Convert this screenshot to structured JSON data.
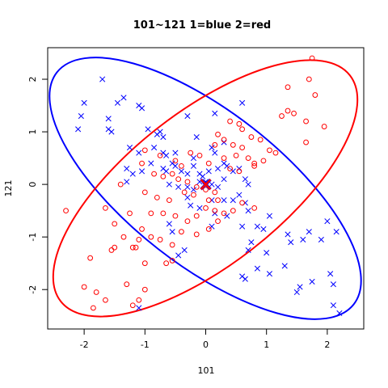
{
  "chart_data": {
    "type": "scatter",
    "title": "101~121 1=blue 2=red",
    "xlabel": "101",
    "ylabel": "121",
    "xlim": [
      -2.6,
      2.6
    ],
    "ylim": [
      -2.75,
      2.6
    ],
    "xticks": [
      "-2",
      "-1",
      "0",
      "1",
      "2"
    ],
    "xtick_values": [
      -2,
      -1,
      0,
      1,
      2
    ],
    "yticks": [
      "-2",
      "-1",
      "0",
      "1",
      "2"
    ],
    "ytick_values": [
      -2,
      -1,
      0,
      1,
      2
    ],
    "grid": false,
    "colors": {
      "group1": "#0000ff",
      "group2": "#ff0000"
    },
    "series": [
      {
        "marker": "x",
        "color": "#0000ff",
        "points": [
          [
            -1.7,
            2.0
          ],
          [
            -2.0,
            1.55
          ],
          [
            -1.45,
            1.55
          ],
          [
            -1.35,
            1.65
          ],
          [
            -1.1,
            1.5
          ],
          [
            -1.05,
            1.45
          ],
          [
            -2.05,
            1.3
          ],
          [
            -2.1,
            1.05
          ],
          [
            -1.6,
            1.25
          ],
          [
            -1.6,
            1.05
          ],
          [
            -1.55,
            1.0
          ],
          [
            -0.95,
            1.05
          ],
          [
            -0.8,
            0.95
          ],
          [
            -0.75,
            1.0
          ],
          [
            -0.7,
            0.9
          ],
          [
            -1.25,
            0.7
          ],
          [
            -1.1,
            0.6
          ],
          [
            -0.85,
            0.7
          ],
          [
            -0.7,
            0.6
          ],
          [
            -0.65,
            0.55
          ],
          [
            -0.5,
            0.6
          ],
          [
            -0.3,
            1.3
          ],
          [
            0.15,
            1.35
          ],
          [
            0.6,
            1.55
          ],
          [
            -1.3,
            0.3
          ],
          [
            -1.2,
            0.2
          ],
          [
            -1.3,
            0.05
          ],
          [
            -1.05,
            0.25
          ],
          [
            -0.9,
            0.4
          ],
          [
            -0.7,
            0.3
          ],
          [
            -0.65,
            0.25
          ],
          [
            -0.55,
            0.4
          ],
          [
            -0.5,
            0.35
          ],
          [
            -0.4,
            0.25
          ],
          [
            -0.3,
            0.2
          ],
          [
            -0.2,
            0.35
          ],
          [
            -0.1,
            0.2
          ],
          [
            -0.05,
            0.15
          ],
          [
            0.05,
            0.25
          ],
          [
            0.2,
            0.3
          ],
          [
            0.3,
            0.4
          ],
          [
            0.35,
            0.35
          ],
          [
            -0.2,
            0.5
          ],
          [
            0.1,
            0.7
          ],
          [
            0.15,
            0.6
          ],
          [
            -0.15,
            0.9
          ],
          [
            0.3,
            0.8
          ],
          [
            -0.6,
            0.0
          ],
          [
            -0.45,
            -0.05
          ],
          [
            -0.3,
            -0.05
          ],
          [
            -0.2,
            -0.1
          ],
          [
            -0.1,
            0.05
          ],
          [
            0.0,
            0.05
          ],
          [
            0.1,
            0.0
          ],
          [
            0.2,
            -0.05
          ],
          [
            0.3,
            0.1
          ],
          [
            0.45,
            0.25
          ],
          [
            0.55,
            0.3
          ],
          [
            0.65,
            0.1
          ],
          [
            0.7,
            0.0
          ],
          [
            -0.3,
            -0.25
          ],
          [
            0.1,
            -0.3
          ],
          [
            0.3,
            -0.3
          ],
          [
            0.45,
            -0.3
          ],
          [
            0.55,
            -0.2
          ],
          [
            0.65,
            -0.35
          ],
          [
            -0.1,
            -0.45
          ],
          [
            0.15,
            -0.55
          ],
          [
            0.35,
            -0.6
          ],
          [
            0.7,
            -0.5
          ],
          [
            -0.6,
            -0.75
          ],
          [
            -0.55,
            -0.9
          ],
          [
            -0.25,
            -0.4
          ],
          [
            -0.45,
            -1.35
          ],
          [
            -0.35,
            -1.25
          ],
          [
            0.1,
            -0.8
          ],
          [
            0.6,
            -0.8
          ],
          [
            0.85,
            -0.8
          ],
          [
            0.95,
            -0.85
          ],
          [
            1.05,
            -0.6
          ],
          [
            0.75,
            -1.1
          ],
          [
            0.7,
            -1.25
          ],
          [
            1.0,
            -1.3
          ],
          [
            0.85,
            -1.6
          ],
          [
            1.35,
            -0.95
          ],
          [
            1.4,
            -1.1
          ],
          [
            1.6,
            -1.05
          ],
          [
            1.7,
            -0.9
          ],
          [
            1.9,
            -1.05
          ],
          [
            2.0,
            -0.7
          ],
          [
            2.15,
            -0.9
          ],
          [
            1.3,
            -1.55
          ],
          [
            1.05,
            -1.7
          ],
          [
            0.6,
            -1.75
          ],
          [
            0.65,
            -1.8
          ],
          [
            1.5,
            -2.05
          ],
          [
            1.55,
            -1.95
          ],
          [
            1.75,
            -1.85
          ],
          [
            2.05,
            -1.7
          ],
          [
            2.1,
            -1.9
          ],
          [
            2.1,
            -2.3
          ],
          [
            2.2,
            -2.45
          ],
          [
            -1.1,
            -2.35
          ]
        ]
      },
      {
        "marker": "o",
        "color": "#ff0000",
        "points": [
          [
            1.75,
            2.4
          ],
          [
            1.7,
            2.0
          ],
          [
            1.8,
            1.7
          ],
          [
            1.35,
            1.85
          ],
          [
            1.35,
            1.4
          ],
          [
            1.45,
            1.35
          ],
          [
            1.25,
            1.3
          ],
          [
            1.65,
            1.2
          ],
          [
            1.95,
            1.1
          ],
          [
            1.65,
            0.8
          ],
          [
            0.4,
            1.2
          ],
          [
            0.55,
            1.15
          ],
          [
            0.6,
            1.05
          ],
          [
            0.75,
            0.9
          ],
          [
            0.9,
            0.85
          ],
          [
            1.05,
            0.65
          ],
          [
            1.15,
            0.6
          ],
          [
            0.95,
            0.45
          ],
          [
            0.8,
            0.4
          ],
          [
            0.2,
            0.95
          ],
          [
            0.3,
            0.85
          ],
          [
            0.15,
            0.75
          ],
          [
            0.45,
            0.75
          ],
          [
            0.6,
            0.7
          ],
          [
            0.3,
            0.5
          ],
          [
            0.5,
            0.55
          ],
          [
            0.7,
            0.5
          ],
          [
            0.8,
            0.35
          ],
          [
            -0.25,
            0.6
          ],
          [
            -0.1,
            0.55
          ],
          [
            0.05,
            0.4
          ],
          [
            0.4,
            0.3
          ],
          [
            0.55,
            0.25
          ],
          [
            -1.0,
            0.65
          ],
          [
            -0.75,
            0.55
          ],
          [
            -0.5,
            0.45
          ],
          [
            -0.4,
            0.35
          ],
          [
            -1.05,
            0.4
          ],
          [
            -0.85,
            0.2
          ],
          [
            -0.7,
            0.15
          ],
          [
            -0.55,
            0.2
          ],
          [
            -0.45,
            0.1
          ],
          [
            -0.3,
            0.05
          ],
          [
            -0.15,
            -0.05
          ],
          [
            0.0,
            -0.1
          ],
          [
            0.15,
            -0.15
          ],
          [
            -0.2,
            -0.2
          ],
          [
            -0.35,
            -0.15
          ],
          [
            0.05,
            -0.3
          ],
          [
            0.2,
            -0.3
          ],
          [
            -1.4,
            0.0
          ],
          [
            -1.0,
            -0.15
          ],
          [
            -0.8,
            -0.25
          ],
          [
            -0.6,
            -0.3
          ],
          [
            -1.25,
            -0.55
          ],
          [
            -0.9,
            -0.55
          ],
          [
            -0.7,
            -0.55
          ],
          [
            -0.5,
            -0.6
          ],
          [
            -0.3,
            -0.7
          ],
          [
            -0.15,
            -0.6
          ],
          [
            0.0,
            -0.45
          ],
          [
            0.15,
            -0.5
          ],
          [
            0.3,
            -0.55
          ],
          [
            0.45,
            -0.5
          ],
          [
            0.6,
            -0.35
          ],
          [
            0.8,
            -0.45
          ],
          [
            -0.15,
            -0.95
          ],
          [
            0.05,
            -0.85
          ],
          [
            -0.4,
            -0.9
          ],
          [
            0.2,
            -0.7
          ],
          [
            -1.65,
            -0.45
          ],
          [
            -1.5,
            -0.75
          ],
          [
            -1.35,
            -1.0
          ],
          [
            -1.1,
            -1.05
          ],
          [
            -1.05,
            -0.85
          ],
          [
            -0.9,
            -1.0
          ],
          [
            -0.75,
            -1.05
          ],
          [
            -0.55,
            -1.15
          ],
          [
            -1.2,
            -1.2
          ],
          [
            -1.15,
            -1.2
          ],
          [
            -1.5,
            -1.2
          ],
          [
            -1.55,
            -1.25
          ],
          [
            -0.65,
            -1.5
          ],
          [
            -0.55,
            -1.45
          ],
          [
            -2.3,
            -0.5
          ],
          [
            -1.9,
            -1.4
          ],
          [
            -2.0,
            -1.95
          ],
          [
            -1.8,
            -2.05
          ],
          [
            -1.3,
            -1.9
          ],
          [
            -1.0,
            -2.0
          ],
          [
            -1.1,
            -2.2
          ],
          [
            -1.2,
            -2.3
          ],
          [
            -1.65,
            -2.2
          ],
          [
            -1.85,
            -2.35
          ],
          [
            -1.0,
            -1.5
          ]
        ]
      }
    ],
    "centers": [
      {
        "color": "#0000ff",
        "x": 0.0,
        "y": 0.0
      },
      {
        "color": "#ff0000",
        "x": 0.0,
        "y": 0.0
      }
    ],
    "ellipses": [
      {
        "color": "#0000ff",
        "orientation": "negative-slope"
      },
      {
        "color": "#ff0000",
        "orientation": "positive-slope"
      }
    ]
  }
}
